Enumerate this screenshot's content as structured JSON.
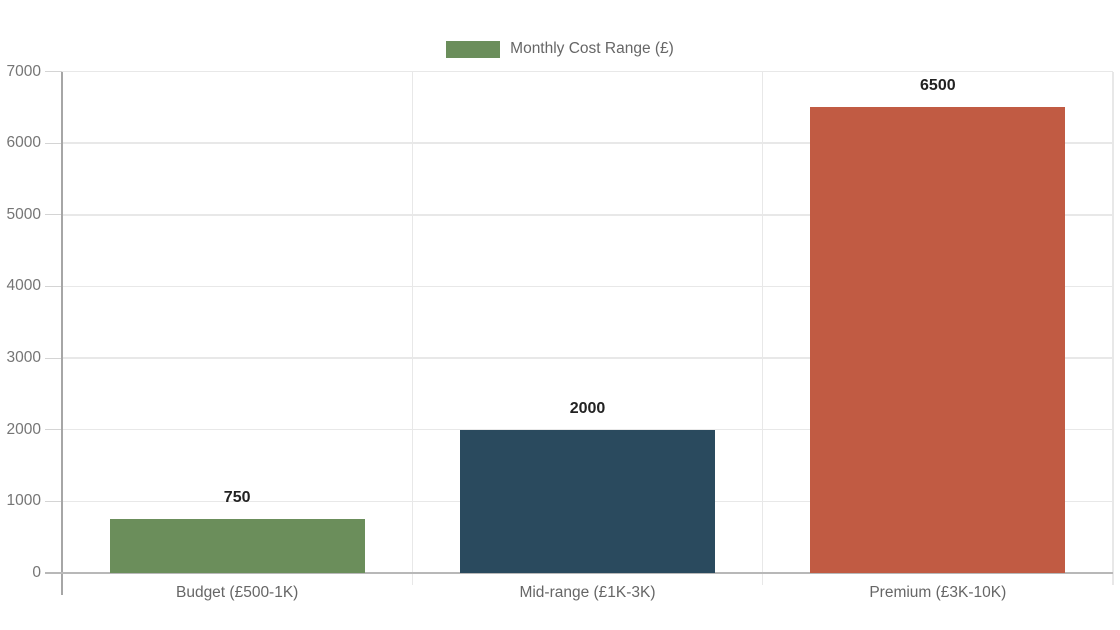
{
  "chart_data": {
    "type": "bar",
    "title": "",
    "xlabel": "",
    "ylabel": "",
    "legend": {
      "label": "Monthly Cost Range (£)",
      "position": "top-center"
    },
    "categories": [
      "Budget (£500-1K)",
      "Mid-range (£1K-3K)",
      "Premium (£3K-10K)"
    ],
    "values": [
      750,
      2000,
      6500
    ],
    "value_labels": [
      "750",
      "2000",
      "6500"
    ],
    "bar_colors": [
      "#6b8e5b",
      "#2a4a5e",
      "#c15b43"
    ],
    "ylim": [
      0,
      7000
    ],
    "ytick_step": 1000,
    "yticks": [
      0,
      1000,
      2000,
      3000,
      4000,
      5000,
      6000,
      7000
    ],
    "grid": "on"
  },
  "palette": {
    "background": "#ffffff",
    "legend_swatch": "#6b8e5b",
    "grid_line": "#e8e8e8",
    "tick_line": "#d4d4d4",
    "y_axis_line": "#a6a6a6",
    "x_axis_line": "#b8b8b8",
    "muted_text": "#666666",
    "tick_text": "#757575",
    "value_text": "#222222"
  }
}
